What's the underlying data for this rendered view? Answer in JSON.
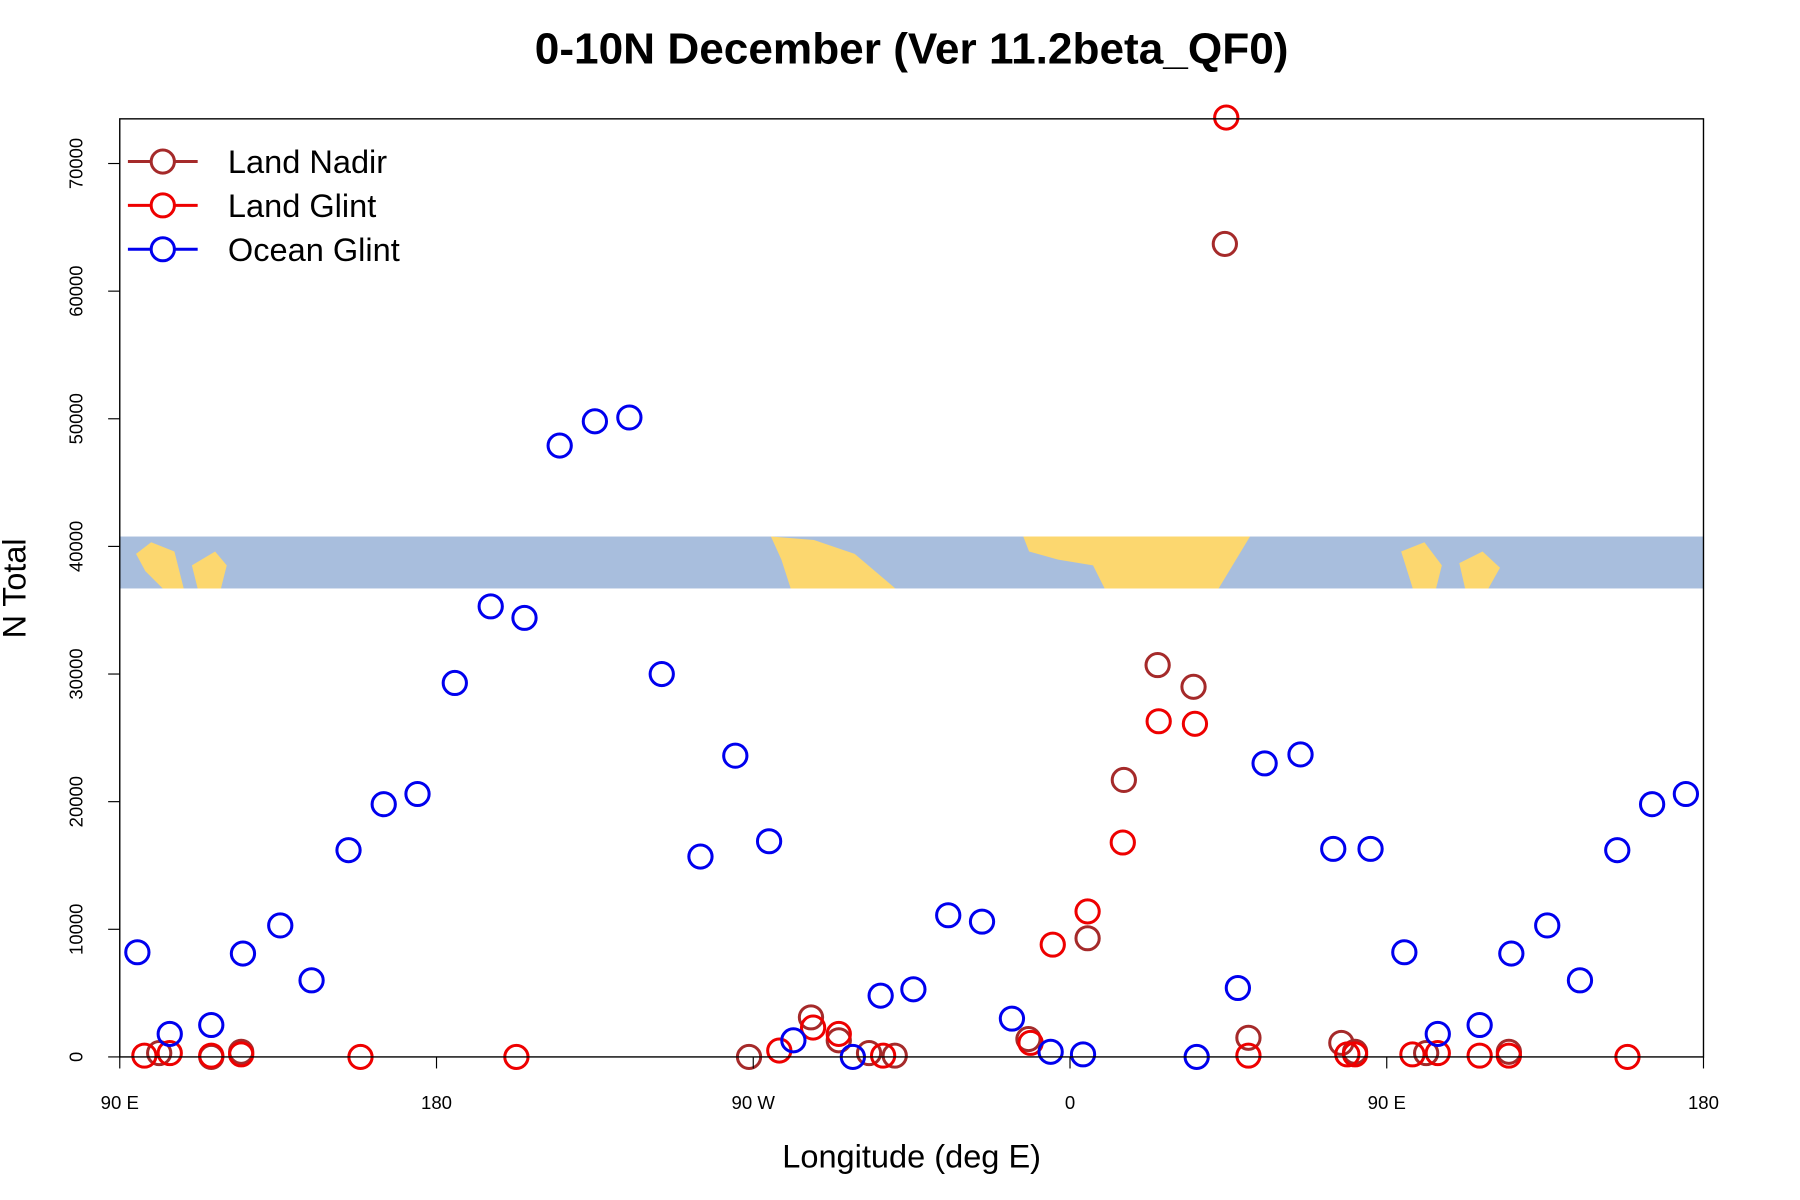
{
  "chart_data": {
    "type": "scatter",
    "title": "0-10N December (Ver 11.2beta_QF0)",
    "x_label": "Longitude (deg E)",
    "y_label": "N Total",
    "xlim": [
      90,
      540
    ],
    "ylim": [
      0,
      73500
    ],
    "xticks": [
      {
        "value": 90,
        "label": "90 E"
      },
      {
        "value": 180,
        "label": "180"
      },
      {
        "value": 270,
        "label": "90 W"
      },
      {
        "value": 360,
        "label": "0"
      },
      {
        "value": 450,
        "label": "90 E"
      },
      {
        "value": 540,
        "label": "180"
      }
    ],
    "yticks": [
      0,
      10000,
      20000,
      30000,
      40000,
      50000,
      60000,
      70000
    ],
    "legend_position": "top-left",
    "series": [
      {
        "name": "Land Nadir",
        "color": "#a52a2a",
        "x": [
          101.2,
          116,
          124.5,
          268.8,
          286.4,
          294.3,
          302.9,
          310.2,
          348.2,
          365,
          375.3,
          384.9,
          395.1,
          404,
          410.7,
          437.1,
          441,
          461.2,
          484.7
        ],
        "values": [
          300,
          0,
          400,
          0,
          3100,
          1300,
          300,
          100,
          1400,
          9300,
          21700,
          30700,
          29000,
          63700,
          1500,
          1100,
          400,
          300,
          400
        ]
      },
      {
        "name": "Land Glint",
        "color": "#ee0000",
        "x": [
          97,
          104.2,
          116,
          124.5,
          158.4,
          202.7,
          277.4,
          287,
          294.3,
          306.9,
          348.8,
          355.1,
          365,
          375,
          385.2,
          395.5,
          404.4,
          410.7,
          438.8,
          441,
          457.3,
          464.5,
          476.4,
          484.7,
          518.4
        ],
        "values": [
          100,
          300,
          100,
          200,
          0,
          0,
          500,
          2300,
          1800,
          100,
          1100,
          8800,
          11400,
          16800,
          26300,
          26100,
          73600,
          100,
          200,
          200,
          200,
          300,
          100,
          100,
          0
        ]
      },
      {
        "name": "Ocean Glint",
        "color": "#0000ee",
        "x": [
          95,
          104.2,
          116,
          125,
          135.6,
          144.5,
          155,
          165,
          174.6,
          185.2,
          195.4,
          205,
          215,
          225,
          234.8,
          244,
          255,
          264.9,
          274.5,
          281.4,
          298.3,
          306.2,
          315.5,
          325.4,
          335,
          343.5,
          354.5,
          363.7,
          396,
          407.7,
          415.3,
          425.5,
          434.8,
          445.4,
          455,
          464.5,
          476.4,
          485.4,
          495.6,
          504.9,
          515.5,
          525.4,
          535
        ],
        "values": [
          8200,
          1800,
          2500,
          8100,
          10300,
          6000,
          16200,
          19800,
          20600,
          29300,
          35300,
          34400,
          47900,
          49800,
          50100,
          30000,
          15700,
          23600,
          16900,
          1300,
          0,
          4800,
          5300,
          11100,
          10600,
          3000,
          400,
          200,
          0,
          5400,
          23000,
          23700,
          16300,
          16300,
          8200,
          1800,
          2500,
          8100,
          10300,
          6000,
          16200,
          19800,
          20600
        ]
      }
    ]
  }
}
